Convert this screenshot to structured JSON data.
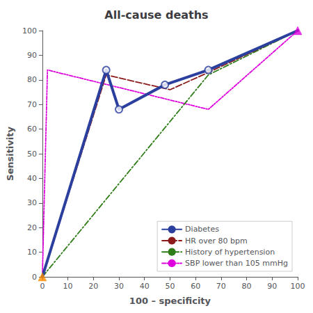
{
  "chart_data": {
    "type": "line",
    "title": "All-cause deaths",
    "xlabel": "100 – specificity",
    "ylabel": "Sensitivity",
    "xlim": [
      0,
      100
    ],
    "ylim": [
      0,
      100
    ],
    "xticks": [
      0,
      10,
      20,
      30,
      40,
      50,
      60,
      70,
      80,
      90,
      100
    ],
    "yticks": [
      0,
      10,
      20,
      30,
      40,
      50,
      60,
      70,
      80,
      90,
      100
    ],
    "grid": false,
    "legend": "lower right",
    "series": [
      {
        "name": "Diabetes",
        "type": "line",
        "color": "#2B3F9E",
        "line_style": "solid",
        "x": [
          0,
          25,
          30,
          48,
          65,
          100
        ],
        "values": [
          0,
          84,
          68,
          78,
          84,
          100
        ]
      },
      {
        "type": "scatter",
        "color": "#2B3F9E",
        "marker": "circle",
        "x": [
          25,
          30,
          48,
          65
        ],
        "values": [
          84,
          68,
          78,
          84
        ]
      },
      {
        "name": "HR over 80 bpm",
        "type": "line",
        "color": "#8B1A1A",
        "line_style": "dashed",
        "x": [
          0,
          25,
          50,
          65,
          100
        ],
        "values": [
          0,
          82,
          76,
          83,
          100
        ]
      },
      {
        "name": "History of hypertension",
        "type": "line",
        "color": "#2E7D18",
        "line_style": "dashdot",
        "x": [
          0,
          65,
          100
        ],
        "values": [
          0,
          82,
          100
        ]
      },
      {
        "name": "SBP lower than 105 mmHg",
        "type": "line",
        "color": "#DD00DD",
        "line_style": "dashdotdot",
        "x": [
          0,
          2,
          65,
          100
        ],
        "values": [
          0,
          84,
          68,
          100
        ]
      },
      {
        "type": "scatter",
        "color": "#FF8C00",
        "marker": "triangle",
        "x": [
          0
        ],
        "values": [
          0
        ]
      },
      {
        "type": "scatter",
        "color": "#DD00DD",
        "marker": "triangle",
        "x": [
          100
        ],
        "values": [
          100
        ]
      }
    ]
  }
}
